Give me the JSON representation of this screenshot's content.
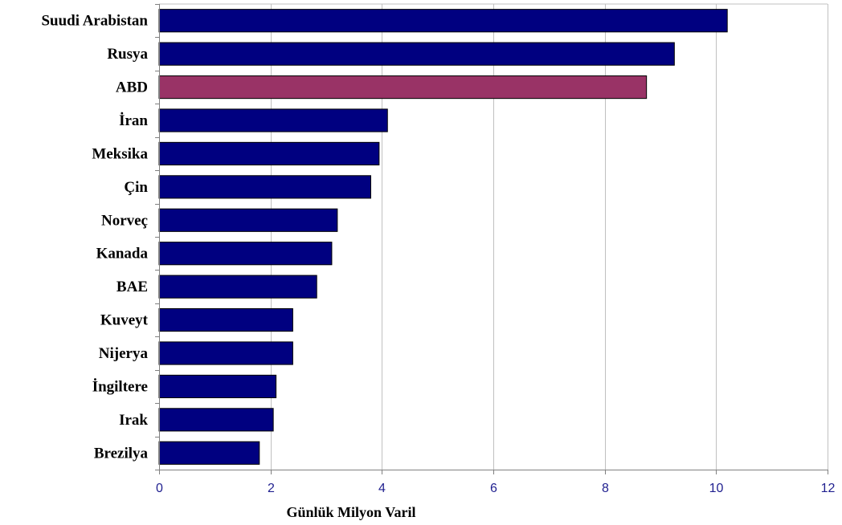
{
  "chart_data": {
    "type": "bar",
    "orientation": "horizontal",
    "categories": [
      "Suudi Arabistan",
      "Rusya",
      "ABD",
      "İran",
      "Meksika",
      "Çin",
      "Norveç",
      "Kanada",
      "BAE",
      "Kuveyt",
      "Nijerya",
      "İngiltere",
      "Irak",
      "Brezilya"
    ],
    "values": [
      10.2,
      9.25,
      8.75,
      4.1,
      3.95,
      3.8,
      3.2,
      3.1,
      2.83,
      2.4,
      2.4,
      2.1,
      2.05,
      1.8
    ],
    "highlight_category": "ABD",
    "xlabel": "Günlük Milyon Varil",
    "ylabel": "",
    "xlim": [
      0,
      12
    ],
    "xticks": [
      0,
      2,
      4,
      6,
      8,
      10,
      12
    ],
    "grid": "vertical",
    "legend": "none",
    "colors": {
      "bar": "#000080",
      "highlight": "#993366",
      "grid": "#c0c0c0",
      "axis": "#808080",
      "tick_text": "#1f1f8f"
    }
  }
}
